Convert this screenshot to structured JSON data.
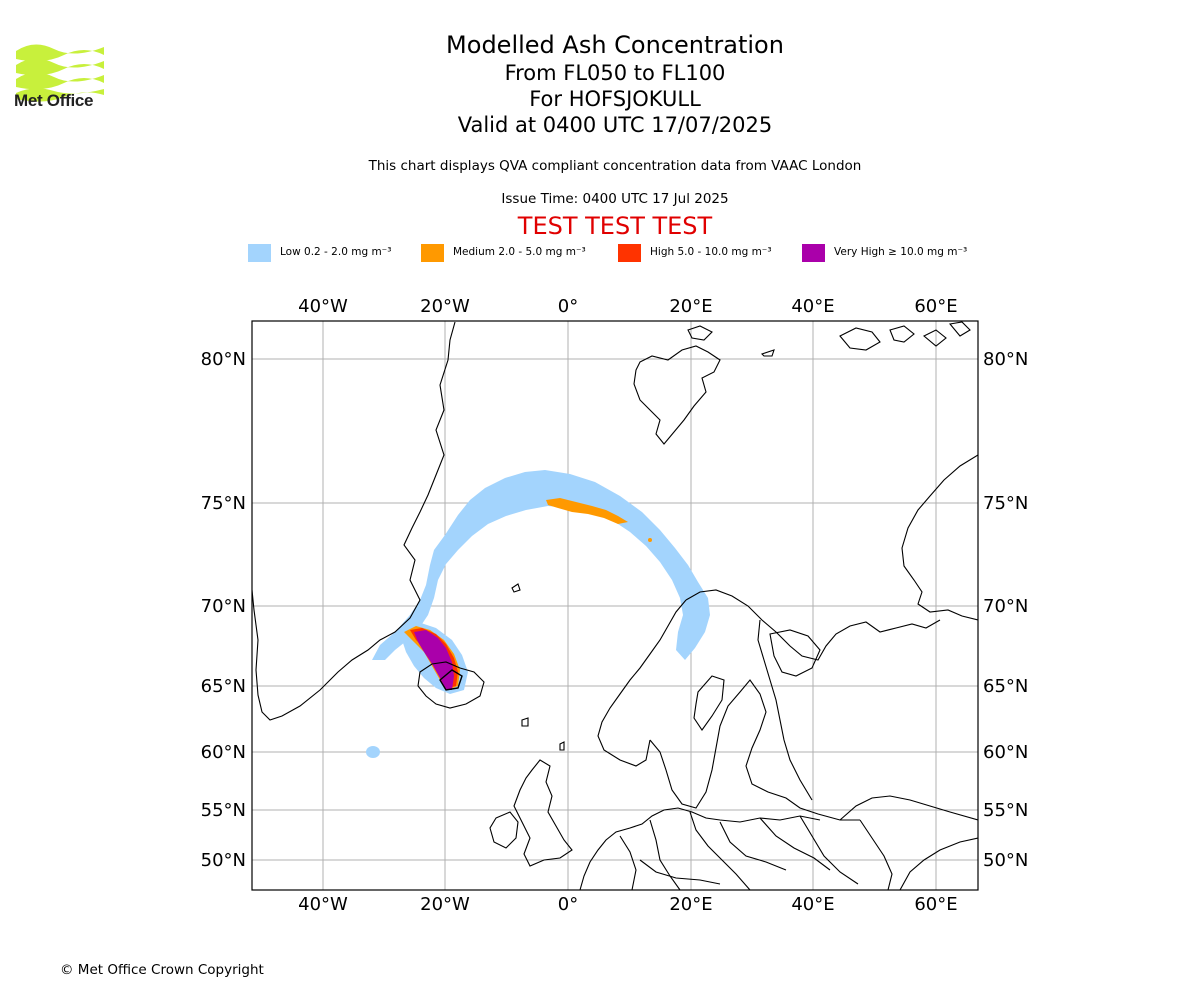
{
  "header": {
    "logo_text": "Met Office",
    "title": "Modelled Ash Concentration",
    "levels": "From FL050 to FL100",
    "volcano": "For HOFSJOKULL",
    "valid": "Valid at 0400 UTC 17/07/2025",
    "description": "This chart displays QVA compliant concentration data from VAAC London",
    "issue_time": "Issue Time: 0400 UTC 17 Jul 2025",
    "test_banner": "TEST TEST TEST"
  },
  "legend": [
    {
      "label": "Low 0.2 - 2.0 mg m⁻³",
      "color": "#a3d4fd"
    },
    {
      "label": "Medium 2.0 - 5.0 mg m⁻³",
      "color": "#ff9900"
    },
    {
      "label": "High 5.0 - 10.0 mg m⁻³",
      "color": "#ff3300"
    },
    {
      "label": "Very High ≥ 10.0 mg m⁻³",
      "color": "#aa00aa"
    }
  ],
  "map": {
    "lon_ticks": [
      "40°W",
      "20°W",
      "0°",
      "20°E",
      "40°E",
      "60°E"
    ],
    "lat_ticks": [
      "80°N",
      "75°N",
      "70°N",
      "65°N",
      "60°N",
      "55°N",
      "50°N"
    ]
  },
  "footer": {
    "copyright": "© Met Office Crown Copyright"
  }
}
